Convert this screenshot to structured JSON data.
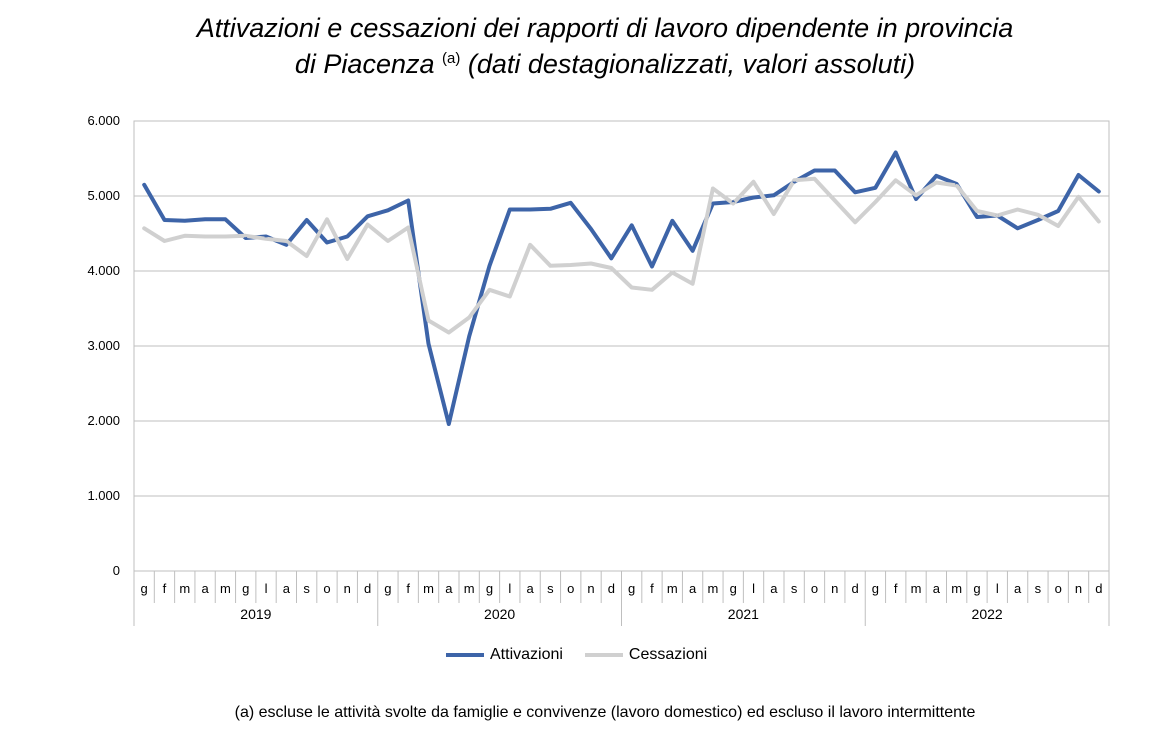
{
  "title_line1": "Attivazioni e cessazioni dei rapporti di lavoro dipendente in provincia",
  "title_line2_main": "di Piacenza",
  "title_sup": "(a)",
  "title_line2_rest": "(dati destagionalizzati, valori assoluti)",
  "footnote": "(a) escluse le attività svolte da famiglie e convivenze (lavoro domestico) ed escluso il lavoro intermittente",
  "colors": {
    "attivazioni": "#3D64A8",
    "cessazioni": "#D0D0D0",
    "grid": "#BFBFBF"
  },
  "chart_data": {
    "type": "line",
    "title": "Attivazioni e cessazioni dei rapporti di lavoro dipendente in provincia di Piacenza (a) (dati destagionalizzati, valori assoluti)",
    "ylim": [
      0,
      6000
    ],
    "y_ticks": [
      "0",
      "1.000",
      "2.000",
      "3.000",
      "4.000",
      "5.000",
      "6.000"
    ],
    "grid": true,
    "legend_position": "bottom",
    "months": [
      "g",
      "f",
      "m",
      "a",
      "m",
      "g",
      "l",
      "a",
      "s",
      "o",
      "n",
      "d"
    ],
    "years": [
      "2019",
      "2020",
      "2021",
      "2022"
    ],
    "series": [
      {
        "name": "Attivazioni",
        "color": "#3D64A8",
        "values": [
          5150,
          4680,
          4670,
          4690,
          4690,
          4440,
          4460,
          4350,
          4680,
          4380,
          4460,
          4730,
          4810,
          4940,
          3030,
          1960,
          3130,
          4070,
          4820,
          4820,
          4830,
          4910,
          4560,
          4170,
          4610,
          4060,
          4670,
          4270,
          4900,
          4920,
          4980,
          5010,
          5190,
          5340,
          5340,
          5050,
          5110,
          5580,
          4960,
          5270,
          5160,
          4720,
          4740,
          4570,
          4680,
          4800,
          5280,
          5060
        ]
      },
      {
        "name": "Cessazioni",
        "color": "#D0D0D0",
        "values": [
          4570,
          4400,
          4470,
          4460,
          4460,
          4470,
          4430,
          4400,
          4200,
          4690,
          4160,
          4620,
          4400,
          4580,
          3340,
          3180,
          3380,
          3750,
          3660,
          4350,
          4070,
          4080,
          4100,
          4040,
          3780,
          3750,
          3980,
          3830,
          5100,
          4900,
          5190,
          4760,
          5210,
          5230,
          4940,
          4650,
          4920,
          5210,
          5010,
          5180,
          5140,
          4800,
          4740,
          4820,
          4750,
          4600,
          4990,
          4660
        ]
      }
    ]
  }
}
